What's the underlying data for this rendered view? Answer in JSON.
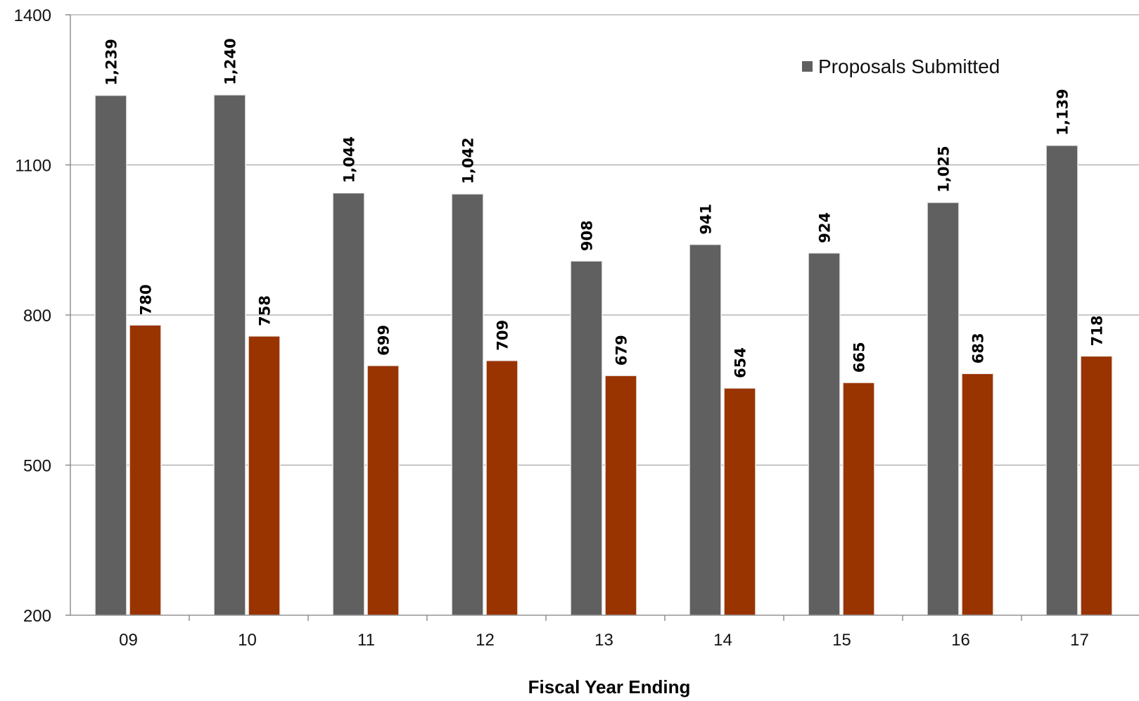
{
  "chart_data": {
    "type": "bar",
    "categories": [
      "09",
      "10",
      "11",
      "12",
      "13",
      "14",
      "15",
      "16",
      "17"
    ],
    "series": [
      {
        "name": "Proposals Submitted",
        "color": "#606060",
        "values": [
          1239,
          1240,
          1044,
          1042,
          908,
          941,
          924,
          1025,
          1139
        ],
        "labels": [
          "1,239",
          "1,240",
          "1,044",
          "1,042",
          "908",
          "941",
          "924",
          "1,025",
          "1,139"
        ]
      },
      {
        "color": "#993300",
        "values": [
          780,
          758,
          699,
          709,
          679,
          654,
          665,
          683,
          718
        ],
        "labels": [
          "780",
          "758",
          "699",
          "709",
          "679",
          "654",
          "665",
          "683",
          "718"
        ]
      }
    ],
    "xlabel": "Fiscal Year Ending",
    "ylabel": "",
    "ylim": [
      200,
      1400
    ],
    "yticks": [
      "200",
      "500",
      "800",
      "1100",
      "1400"
    ],
    "grid": true,
    "legend_position": "top-right"
  }
}
